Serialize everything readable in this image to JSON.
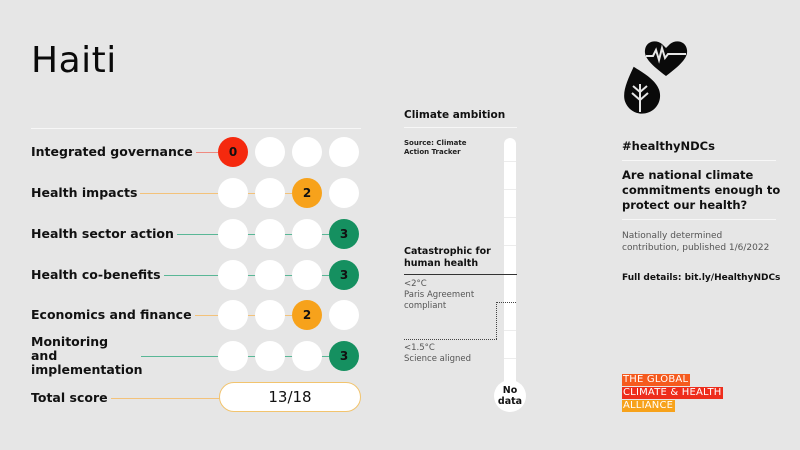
{
  "country": "Haiti",
  "colors": {
    "background": "#e6e6e6",
    "score_0": "#f5290e",
    "score_2": "#f7a21b",
    "score_3": "#159060",
    "connector_0": "#ef8a80",
    "connector_2": "#f3c27a",
    "connector_3": "#59b796",
    "empty_dot": "#ffffff",
    "gcha_line1": "#f55a1e",
    "gcha_line2": "#ee2d1c",
    "gcha_line3": "#f7a21b"
  },
  "scorecard": {
    "max_per_category": 3,
    "categories": [
      {
        "label": "Integrated governance",
        "score": "0",
        "score_value": 0
      },
      {
        "label": "Health impacts",
        "score": "2",
        "score_value": 2
      },
      {
        "label": "Health sector action",
        "score": "3",
        "score_value": 3
      },
      {
        "label": "Health co-benefits",
        "score": "3",
        "score_value": 3
      },
      {
        "label": "Economics and finance",
        "score": "2",
        "score_value": 2
      },
      {
        "label": "Monitoring and implementation",
        "score": "3",
        "score_value": 3
      }
    ],
    "total_label": "Total score",
    "total_value": "13/18"
  },
  "climate_ambition": {
    "title": "Climate ambition",
    "source": "Source: Climate Action Tracker",
    "levels": {
      "catastrophic": "Catastrophic for human health",
      "paris_temp": "<2°C",
      "paris_label": "Paris Agreement compliant",
      "science_temp": "<1.5°C",
      "science_label": "Science aligned"
    },
    "result": "No data"
  },
  "sidebar": {
    "hashtag": "#healthyNDCs",
    "question": "Are national climate commitments enough to protect our health?",
    "ndc_info": "Nationally determined contribution, published 1/6/2022",
    "details": "Full details: bit.ly/HealthyNDCs",
    "logo_icon": "heart-leaf-icon"
  },
  "org": {
    "line1": "THE GLOBAL",
    "line2": "CLIMATE & HEALTH",
    "line3": "ALLIANCE"
  }
}
